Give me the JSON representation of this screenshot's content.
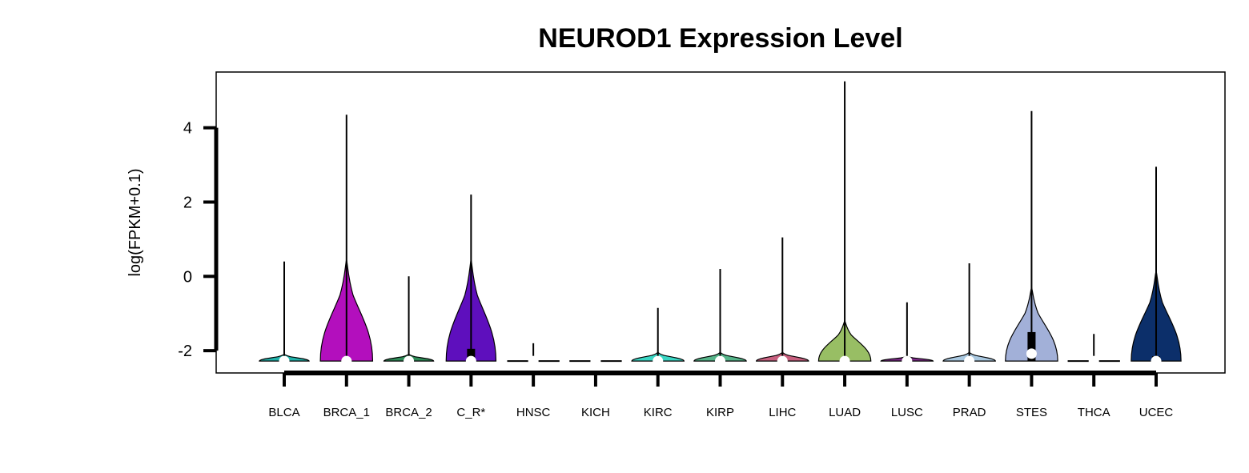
{
  "chart_data": {
    "type": "violin",
    "title": "NEUROD1 Expression Level",
    "xlabel": "",
    "ylabel": "log(FPKM+0.1)",
    "ylim": [
      -2.6,
      5.5
    ],
    "yticks": [
      -2,
      0,
      2,
      4
    ],
    "grid": false,
    "legend": "none",
    "categories": [
      "BLCA",
      "BRCA_1",
      "BRCA_2",
      "C_R*",
      "HNSC",
      "KICH",
      "KIRC",
      "KIRP",
      "LIHC",
      "LUAD",
      "LUSC",
      "PRAD",
      "STES",
      "THCA",
      "UCEC"
    ],
    "colors": [
      "#20b2aa",
      "#b30fbd",
      "#2e8b57",
      "#5e0fbd",
      "#ffffff",
      "#ffffff",
      "#3ad6c4",
      "#55b489",
      "#c8607f",
      "#98be64",
      "#7f2a8a",
      "#a9c8e0",
      "#a2b0d8",
      "#ffffff",
      "#0c2f6a"
    ],
    "max": [
      0.4,
      4.35,
      0.0,
      2.2,
      -1.8,
      -2.28,
      -0.85,
      0.2,
      1.05,
      5.25,
      -0.7,
      0.35,
      4.45,
      -1.55,
      2.95
    ],
    "median": [
      -2.28,
      -2.28,
      -2.28,
      -2.28,
      -2.28,
      -2.28,
      -2.28,
      -2.28,
      -2.28,
      -2.28,
      -2.28,
      -2.28,
      -2.08,
      -2.28,
      -2.28
    ],
    "q3": [
      -2.28,
      -2.28,
      -2.28,
      -1.95,
      -2.28,
      -2.28,
      -2.28,
      -2.28,
      -2.28,
      -2.2,
      -2.28,
      -2.28,
      -1.5,
      -2.28,
      -2.15
    ],
    "violin_top": [
      -2.1,
      0.45,
      -2.1,
      0.45,
      -2.28,
      -2.28,
      -2.05,
      -2.05,
      -2.05,
      -1.2,
      -2.15,
      -2.05,
      -0.3,
      -2.28,
      0.15
    ],
    "halfwidth": [
      0.4,
      0.42,
      0.4,
      0.4,
      0.42,
      0.42,
      0.42,
      0.42,
      0.42,
      0.42,
      0.42,
      0.42,
      0.42,
      0.42,
      0.4
    ]
  }
}
